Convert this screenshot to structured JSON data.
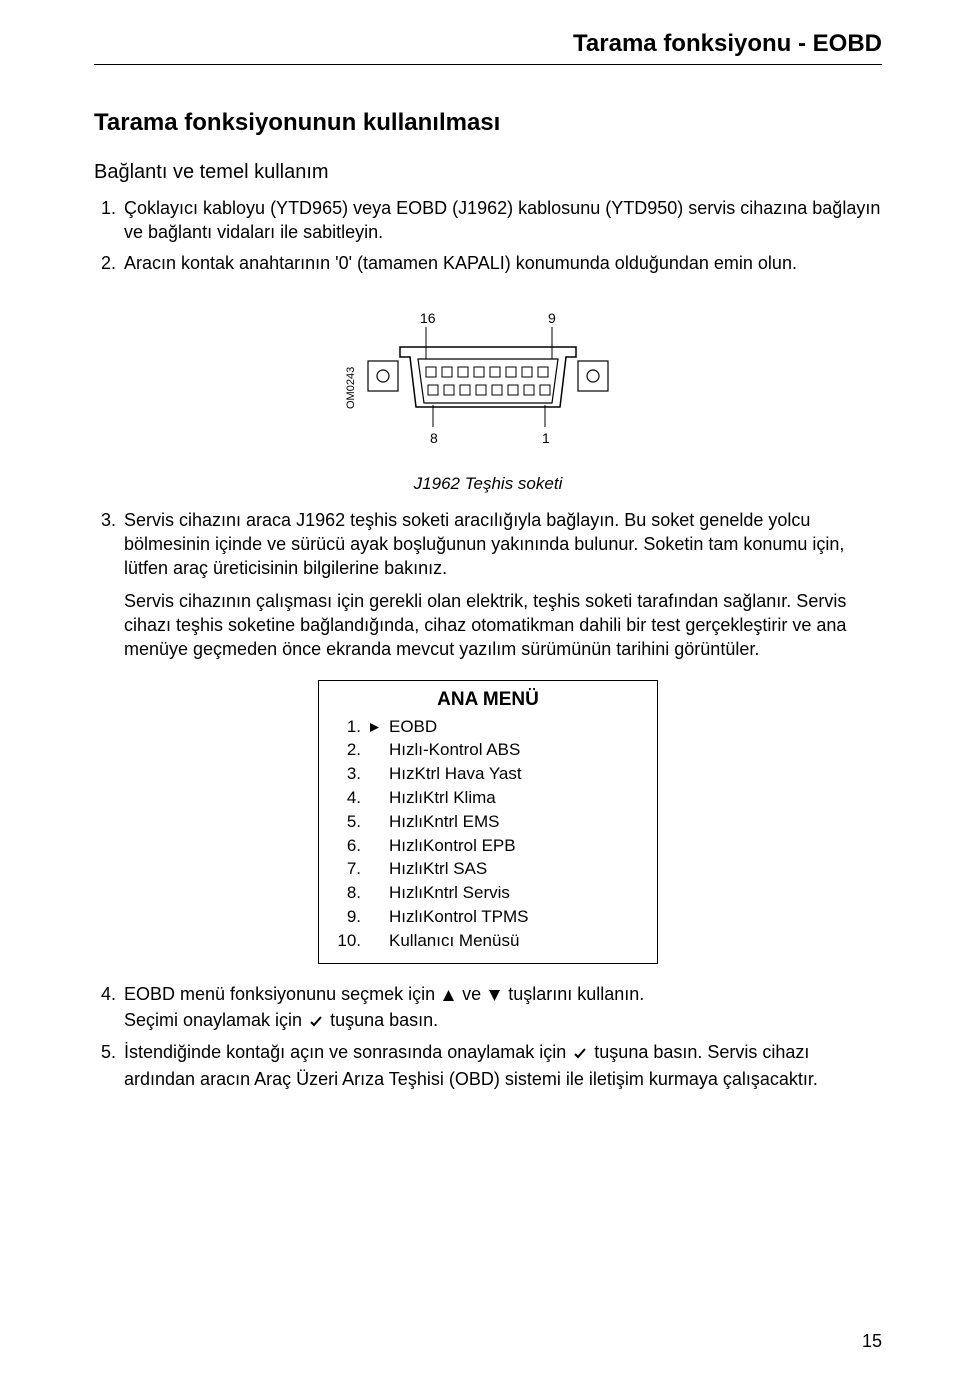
{
  "page": {
    "header": "Tarama fonksiyonu - EOBD",
    "title": "Tarama fonksiyonunun kullanılması",
    "subtitle": "Bağlantı ve temel kullanım",
    "pageNumber": "15"
  },
  "steps": {
    "s1": {
      "num": "1.",
      "text": "Çoklayıcı kabloyu (YTD965) veya EOBD (J1962) kablosunu (YTD950) servis cihazına bağlayın ve bağlantı vidaları ile sabitleyin."
    },
    "s2": {
      "num": "2.",
      "text": "Aracın kontak anahtarının '0' (tamamen KAPALI) konumunda olduğundan emin olun."
    },
    "s3": {
      "num": "3.",
      "text": "Servis cihazını araca J1962 teşhis soketi aracılığıyla bağlayın. Bu soket genelde yolcu bölmesinin içinde ve sürücü ayak boşluğunun yakınında bulunur. Soketin tam konumu için, lütfen araç üreticisinin bilgilerine bakınız."
    },
    "s3b": "Servis cihazının çalışması için gerekli olan elektrik, teşhis soketi tarafından sağlanır. Servis cihazı teşhis soketine bağlandığında, cihaz otomatikman dahili bir test gerçekleştirir ve ana menüye geçmeden önce ekranda mevcut yazılım sürümünün tarihini görüntüler.",
    "s4": {
      "num": "4.",
      "part1": "EOBD menü fonksiyonunu seçmek için ",
      "part2": " ve ",
      "part3": " tuşlarını kullanın.",
      "line2a": "Seçimi onaylamak için ",
      "line2b": " tuşuna basın."
    },
    "s5": {
      "num": "5.",
      "part1": "İstendiğinde kontağı açın ve sonrasında onaylamak için ",
      "part2": " tuşuna basın. Servis cihazı ardından aracın Araç Üzeri Arıza Teşhisi (OBD) sistemi ile iletişim kurmaya çalışacaktır."
    }
  },
  "diagram": {
    "caption": "J1962 Teşhis soketi",
    "label_tl": "16",
    "label_tr": "9",
    "label_bl": "8",
    "label_br": "1",
    "ref": "OM0243"
  },
  "menu": {
    "title": "ANA MENÜ",
    "items": [
      {
        "num": "1.",
        "label": "EOBD",
        "selected": true
      },
      {
        "num": "2.",
        "label": "Hızlı-Kontrol ABS",
        "selected": false
      },
      {
        "num": "3.",
        "label": "HızKtrl Hava Yast",
        "selected": false
      },
      {
        "num": "4.",
        "label": "HızlıKtrl Klima",
        "selected": false
      },
      {
        "num": "5.",
        "label": "HızlıKntrl EMS",
        "selected": false
      },
      {
        "num": "6.",
        "label": "HızlıKontrol EPB",
        "selected": false
      },
      {
        "num": "7.",
        "label": "HızlıKtrl SAS",
        "selected": false
      },
      {
        "num": "8.",
        "label": "HızlıKntrl Servis",
        "selected": false
      },
      {
        "num": "9.",
        "label": "HızlıKontrol TPMS",
        "selected": false
      },
      {
        "num": "10.",
        "label": "Kullanıcı Menüsü",
        "selected": false
      }
    ]
  },
  "colors": {
    "text": "#000000",
    "bg": "#ffffff"
  }
}
